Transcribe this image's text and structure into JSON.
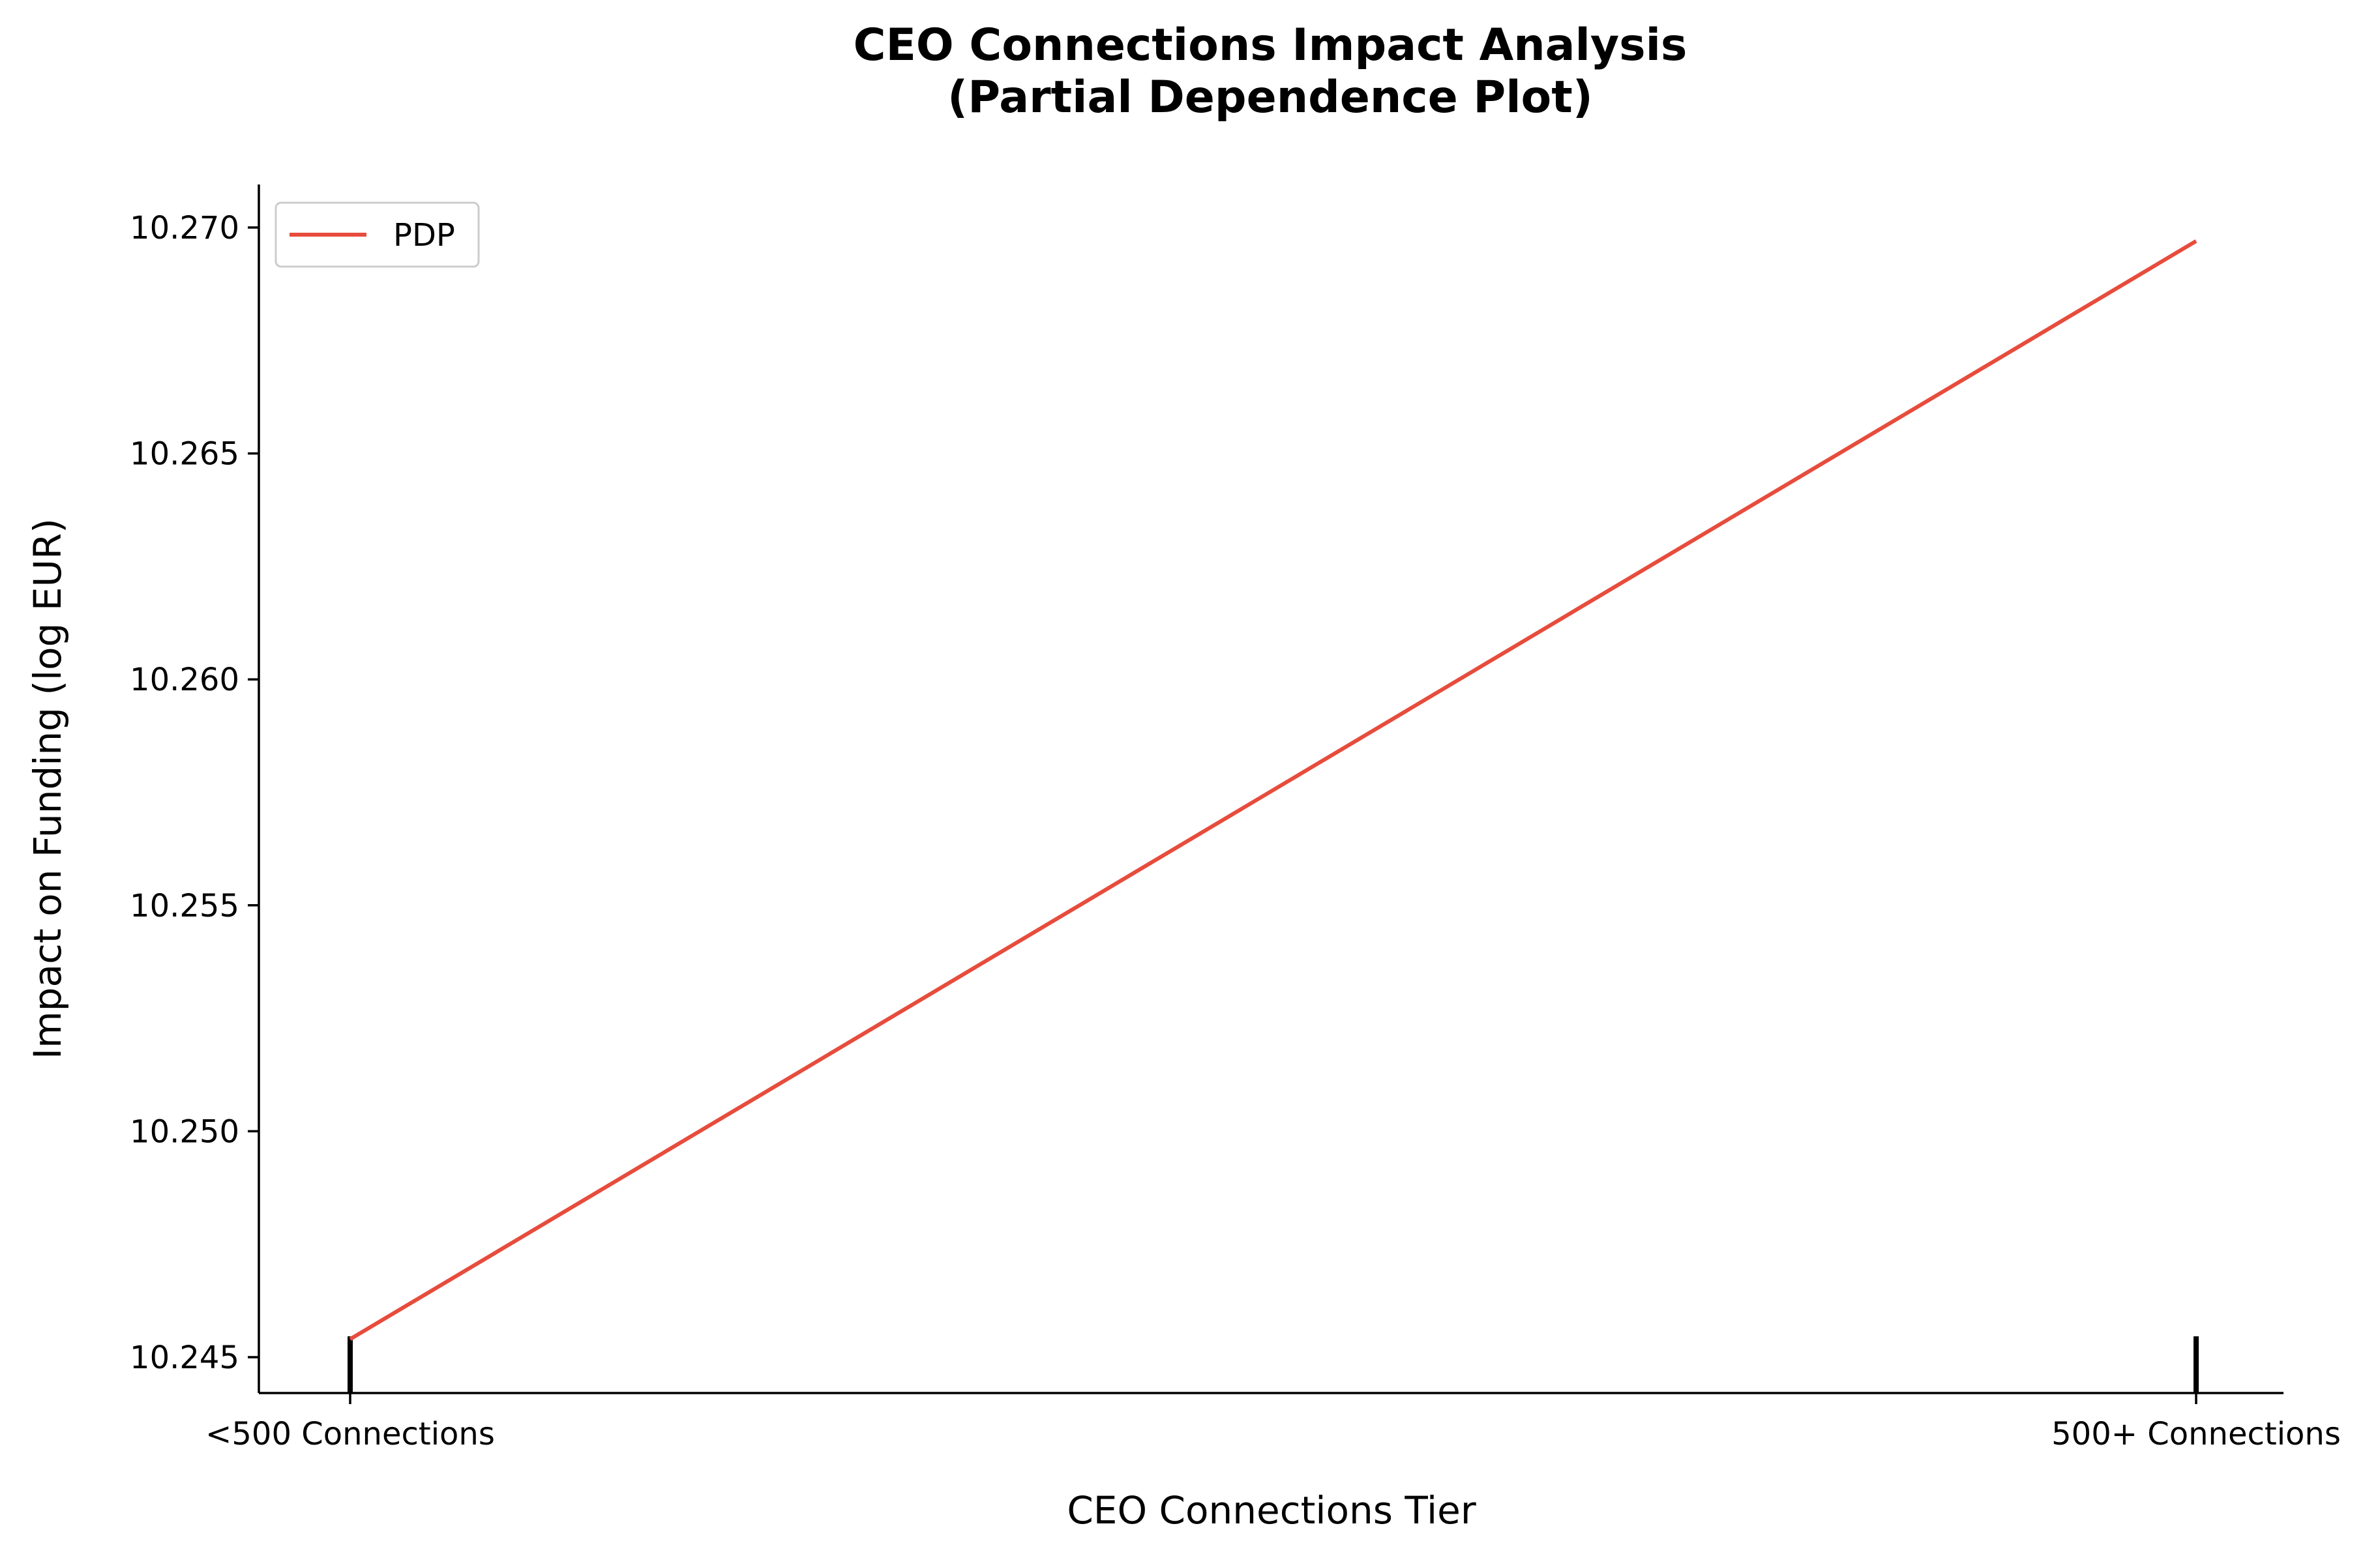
{
  "chart_data": {
    "type": "line",
    "title": "CEO Connections Impact Analysis",
    "subtitle": "(Partial Dependence Plot)",
    "xlabel": "CEO Connections Tier",
    "ylabel": "Impact on Funding (log EUR)",
    "categories": [
      "<500 Connections",
      "500+ Connections"
    ],
    "series": [
      {
        "name": "PDP",
        "color": "#e74c3c",
        "values": [
          10.2454,
          10.2697
        ]
      }
    ],
    "yticks": [
      "10.245",
      "10.250",
      "10.255",
      "10.260",
      "10.265",
      "10.270"
    ],
    "ylim": [
      10.2442,
      10.2709
    ],
    "grid": false,
    "legend": "top-left",
    "rug_markers": true
  }
}
